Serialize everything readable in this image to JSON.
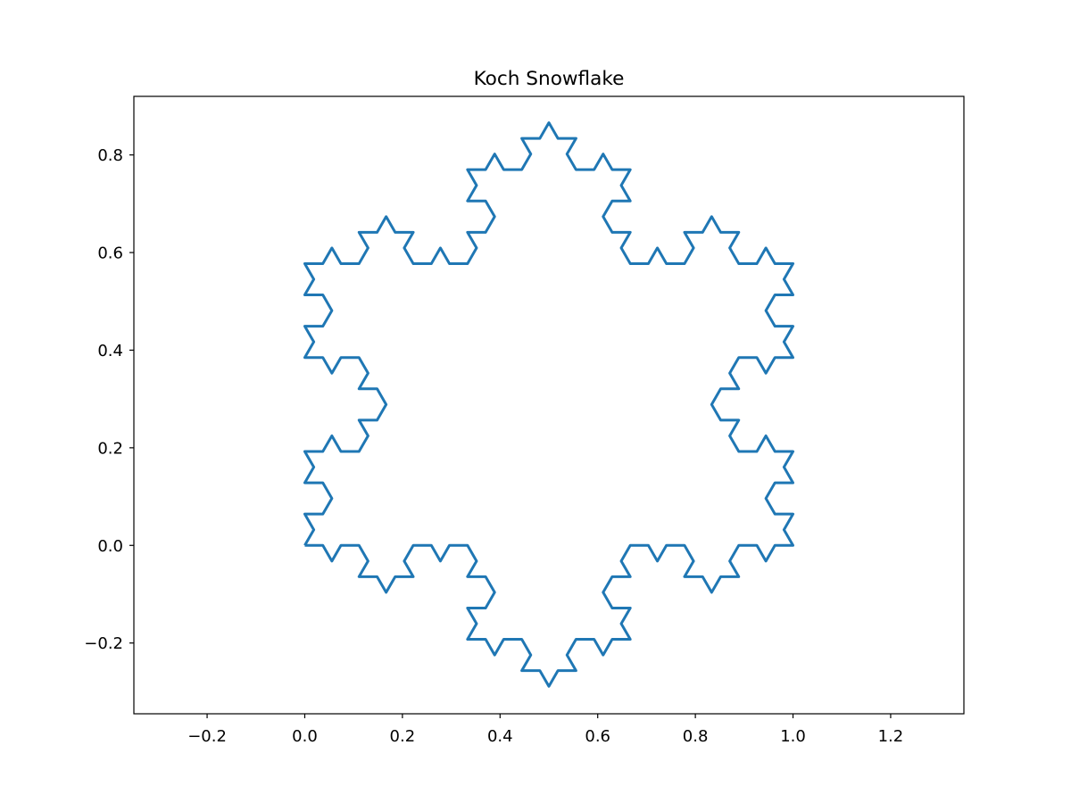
{
  "chart_data": {
    "type": "line",
    "title": "Koch Snowflake",
    "xlabel": "",
    "ylabel": "",
    "xlim": [
      -0.35,
      1.35
    ],
    "ylim": [
      -0.345,
      0.92
    ],
    "xticks": [
      -0.2,
      0.0,
      0.2,
      0.4,
      0.6,
      0.8,
      1.0,
      1.2
    ],
    "xtick_labels": [
      "−0.2",
      "0.0",
      "0.2",
      "0.4",
      "0.6",
      "0.8",
      "1.0",
      "1.2"
    ],
    "yticks": [
      -0.2,
      0.0,
      0.2,
      0.4,
      0.6,
      0.8
    ],
    "ytick_labels": [
      "−0.2",
      "0.0",
      "0.2",
      "0.4",
      "0.6",
      "0.8"
    ],
    "grid": false,
    "series": [
      {
        "curve": "koch-snowflake",
        "iterations": 3,
        "vertices": [
          [
            0,
            0
          ],
          [
            1,
            0
          ],
          [
            0.5,
            0.8660254
          ]
        ],
        "color": "#1f77b4"
      }
    ]
  }
}
